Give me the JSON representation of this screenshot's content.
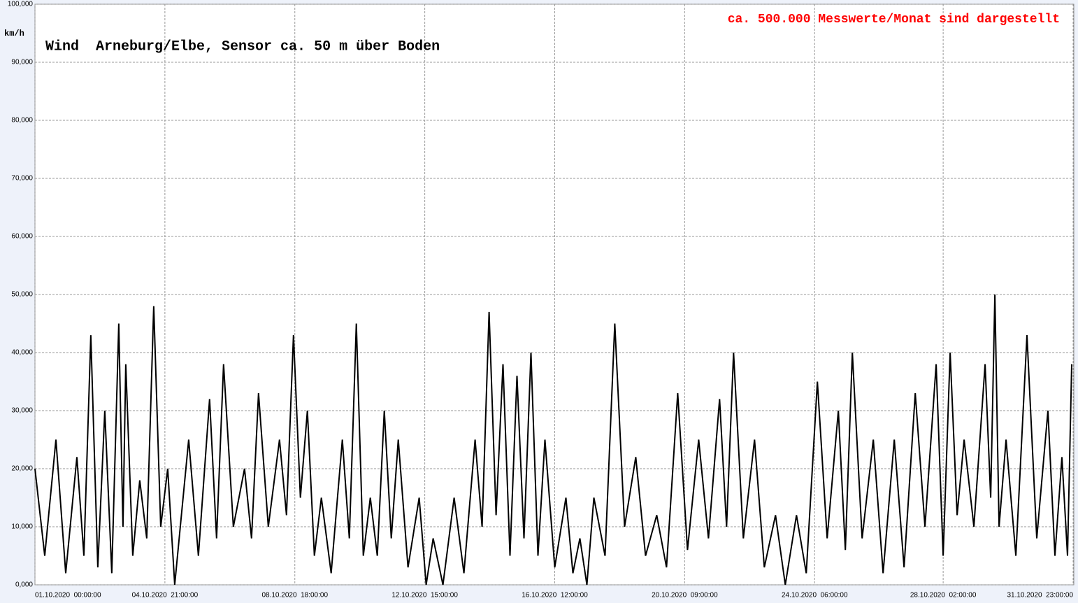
{
  "chart_data": {
    "type": "line",
    "title": "Wind  Arneburg/Elbe, Sensor ca. 50 m über Boden",
    "subtitle": "ca. 500.000 Messwerte/Monat sind dargestellt",
    "y_label": "km/h",
    "color": "#000000",
    "grid": true,
    "x": [
      0,
      7,
      15,
      22,
      30,
      35,
      40,
      45,
      50,
      55,
      60,
      63,
      65,
      70,
      75,
      80,
      85,
      90,
      95,
      100,
      110,
      117,
      125,
      130,
      135,
      142,
      150,
      155,
      160,
      167,
      175,
      180,
      185,
      190,
      195,
      200,
      205,
      212,
      220,
      225,
      230,
      235,
      240,
      245,
      250,
      255,
      260,
      267,
      275,
      280,
      285,
      292,
      300,
      307,
      315,
      320,
      325,
      330,
      335,
      340,
      345,
      350,
      355,
      360,
      365,
      372,
      380,
      385,
      390,
      395,
      400,
      408,
      415,
      422,
      430,
      437,
      445,
      452,
      460,
      467,
      475,
      482,
      490,
      495,
      500,
      507,
      515,
      522,
      530,
      537,
      545,
      552,
      560,
      567,
      575,
      580,
      585,
      592,
      600,
      607,
      615,
      622,
      630,
      637,
      645,
      650,
      655,
      660,
      665,
      672,
      680,
      684,
      687,
      690,
      695,
      702,
      710,
      717,
      725,
      730,
      735,
      739,
      742
    ],
    "values": [
      20,
      5,
      25,
      2,
      22,
      5,
      43,
      3,
      30,
      2,
      45,
      10,
      38,
      5,
      18,
      8,
      48,
      10,
      20,
      0,
      25,
      5,
      32,
      8,
      38,
      10,
      20,
      8,
      33,
      10,
      25,
      12,
      43,
      15,
      30,
      5,
      15,
      2,
      25,
      8,
      45,
      5,
      15,
      5,
      30,
      8,
      25,
      3,
      15,
      0,
      8,
      0,
      15,
      2,
      25,
      10,
      47,
      12,
      38,
      5,
      36,
      8,
      40,
      5,
      25,
      3,
      15,
      2,
      8,
      0,
      15,
      5,
      45,
      10,
      22,
      5,
      12,
      3,
      33,
      6,
      25,
      8,
      32,
      10,
      40,
      8,
      25,
      3,
      12,
      0,
      12,
      2,
      35,
      8,
      30,
      6,
      40,
      8,
      25,
      2,
      25,
      3,
      33,
      10,
      38,
      5,
      40,
      12,
      25,
      10,
      38,
      15,
      50,
      10,
      25,
      5,
      43,
      8,
      30,
      5,
      22,
      5,
      38
    ],
    "xlim": [
      0,
      743
    ],
    "xticks": [
      {
        "value": 0,
        "label": "01.10.2020  00:00:00"
      },
      {
        "value": 93,
        "label": "04.10.2020  21:00:00"
      },
      {
        "value": 186,
        "label": "08.10.2020  18:00:00"
      },
      {
        "value": 279,
        "label": "12.10.2020  15:00:00"
      },
      {
        "value": 372,
        "label": "16.10.2020  12:00:00"
      },
      {
        "value": 465,
        "label": "20.10.2020  09:00:00"
      },
      {
        "value": 558,
        "label": "24.10.2020  06:00:00"
      },
      {
        "value": 650,
        "label": "28.10.2020  02:00:00"
      },
      {
        "value": 743,
        "label": "31.10.2020  23:00:00"
      }
    ],
    "ylim": [
      0,
      100
    ],
    "yticks": [
      {
        "value": 0,
        "label": "0,000"
      },
      {
        "value": 10,
        "label": "10,000"
      },
      {
        "value": 20,
        "label": "20,000"
      },
      {
        "value": 30,
        "label": "30,000"
      },
      {
        "value": 40,
        "label": "40,000"
      },
      {
        "value": 50,
        "label": "50,000"
      },
      {
        "value": 60,
        "label": "60,000"
      },
      {
        "value": 70,
        "label": "70,000"
      },
      {
        "value": 80,
        "label": "80,000"
      },
      {
        "value": 90,
        "label": "90,000"
      },
      {
        "value": 100,
        "label": "100,000"
      }
    ]
  }
}
